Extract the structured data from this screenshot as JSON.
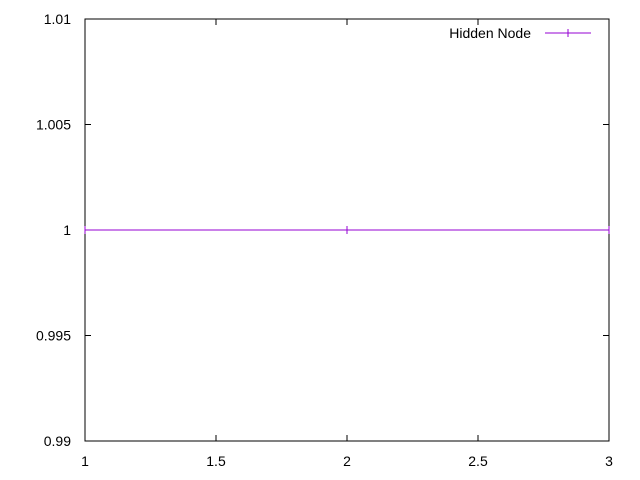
{
  "chart_data": {
    "type": "line",
    "x": [
      1,
      2,
      3
    ],
    "series": [
      {
        "name": "Hidden Node",
        "values": [
          1,
          1,
          1
        ],
        "color": "#9400d3"
      }
    ],
    "xlim": [
      1,
      3
    ],
    "ylim": [
      0.99,
      1.01
    ],
    "x_ticks": [
      "1",
      "1.5",
      "2",
      "2.5",
      "3"
    ],
    "y_ticks": [
      "0.99",
      "0.995",
      "1",
      "1.005",
      "1.01"
    ],
    "legend_placement": "top-right",
    "grid": false
  }
}
